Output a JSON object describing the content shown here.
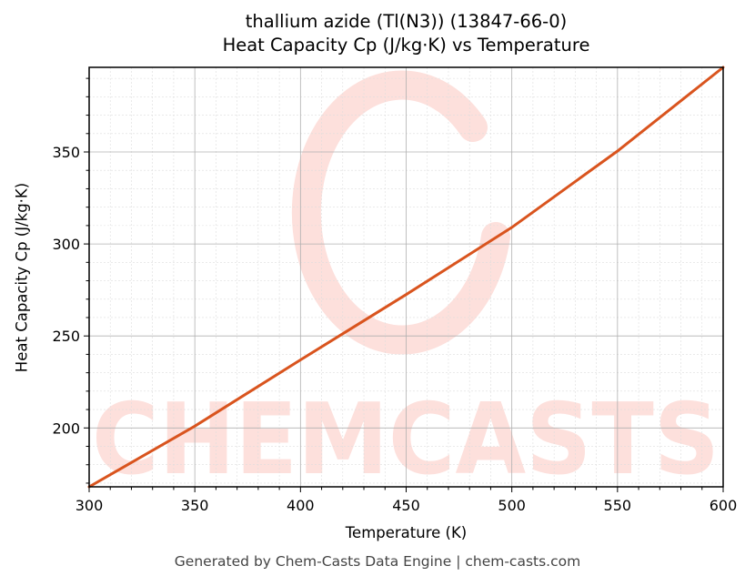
{
  "header": {
    "title_line1": "thallium azide (Tl(N3)) (13847-66-0)",
    "title_line2": "Heat Capacity Cp (J/kg·K) vs Temperature"
  },
  "axes": {
    "xlabel": "Temperature (K)",
    "ylabel": "Heat Capacity Cp (J/kg·K)",
    "xticks": [
      "300",
      "350",
      "400",
      "450",
      "500",
      "550",
      "600"
    ],
    "yticks": [
      "200",
      "250",
      "300",
      "350"
    ]
  },
  "watermark": {
    "text": "CHEMCASTS",
    "color": "#fde0dc"
  },
  "colors": {
    "line": "#d9541e",
    "grid_major": "#b0b0b0",
    "grid_minor": "#dddddd"
  },
  "footer": {
    "text": "Generated by Chem-Casts Data Engine | chem-casts.com"
  },
  "chart_data": {
    "type": "line",
    "title": "thallium azide (Tl(N3)) (13847-66-0)\nHeat Capacity Cp (J/kg·K) vs Temperature",
    "xlabel": "Temperature (K)",
    "ylabel": "Heat Capacity Cp (J/kg·K)",
    "xlim": [
      300,
      600
    ],
    "ylim": [
      168,
      396
    ],
    "grid": true,
    "legend": null,
    "series": [
      {
        "name": "Heat Capacity Cp",
        "color": "#d9541e",
        "x": [
          300,
          350,
          400,
          450,
          500,
          550,
          600
        ],
        "y": [
          168,
          201,
          237,
          272.5,
          309,
          350.5,
          396
        ]
      }
    ]
  }
}
